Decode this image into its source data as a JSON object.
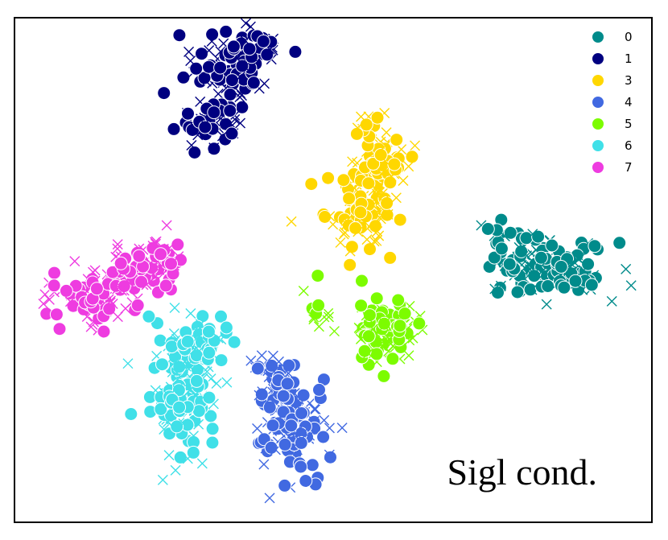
{
  "chart_data": {
    "type": "scatter",
    "title": "",
    "xlabel": "",
    "ylabel": "",
    "xlim": [
      -60,
      60
    ],
    "ylim": [
      -50,
      50
    ],
    "grid": false,
    "axis_ticks": "none",
    "legend_position": "top-right",
    "annotation": "Sigl cond.",
    "marker_types": [
      "circle",
      "x"
    ],
    "series": [
      {
        "name": "0",
        "color": "#008B8B",
        "clusters": [
          {
            "cx": 36,
            "cy": 2,
            "sx": 3.2,
            "sy": 2.6,
            "n": 60
          },
          {
            "cx": 44,
            "cy": 0,
            "sx": 4.2,
            "sy": 2.8,
            "n": 70
          },
          {
            "cx": 31,
            "cy": 7,
            "sx": 0.9,
            "sy": 1.6,
            "n": 14
          },
          {
            "cx": 32,
            "cy": -4,
            "sx": 1.2,
            "sy": 1.0,
            "n": 5
          }
        ]
      },
      {
        "name": "1",
        "color": "#000080",
        "clusters": [
          {
            "cx": -20,
            "cy": 40,
            "sx": 3.5,
            "sy": 3.2,
            "n": 90
          },
          {
            "cx": -24,
            "cy": 28,
            "sx": 2.8,
            "sy": 2.8,
            "n": 50
          },
          {
            "cx": -15,
            "cy": 44,
            "sx": 2.4,
            "sy": 2.0,
            "n": 30
          }
        ]
      },
      {
        "name": "3",
        "color": "#FFD700",
        "clusters": [
          {
            "cx": 5,
            "cy": 13,
            "sx": 3.2,
            "sy": 4.0,
            "n": 110
          },
          {
            "cx": 9,
            "cy": 21,
            "sx": 2.5,
            "sy": 3.2,
            "n": 60
          },
          {
            "cx": 6,
            "cy": 28,
            "sx": 1.4,
            "sy": 1.4,
            "n": 12
          }
        ]
      },
      {
        "name": "4",
        "color": "#4169E1",
        "clusters": [
          {
            "cx": -8,
            "cy": -30,
            "sx": 3.5,
            "sy": 4.5,
            "n": 120
          },
          {
            "cx": -11,
            "cy": -21,
            "sx": 2.0,
            "sy": 2.5,
            "n": 40
          }
        ]
      },
      {
        "name": "5",
        "color": "#7CFC00",
        "clusters": [
          {
            "cx": 10,
            "cy": -12,
            "sx": 3.0,
            "sy": 2.8,
            "n": 110
          },
          {
            "cx": -3,
            "cy": -9,
            "sx": 1.5,
            "sy": 3.0,
            "n": 12
          }
        ]
      },
      {
        "name": "6",
        "color": "#40E0E8",
        "clusters": [
          {
            "cx": -28,
            "cy": -24,
            "sx": 3.2,
            "sy": 6.0,
            "n": 150
          },
          {
            "cx": -24,
            "cy": -14,
            "sx": 2.6,
            "sy": 2.4,
            "n": 40
          }
        ]
      },
      {
        "name": "7",
        "color": "#EE3CE0",
        "clusters": [
          {
            "cx": -44,
            "cy": -5,
            "sx": 4.0,
            "sy": 2.8,
            "n": 90
          },
          {
            "cx": -36,
            "cy": 0,
            "sx": 3.5,
            "sy": 2.6,
            "n": 70
          },
          {
            "cx": -31,
            "cy": 3,
            "sx": 1.6,
            "sy": 1.4,
            "n": 14
          }
        ]
      }
    ]
  }
}
